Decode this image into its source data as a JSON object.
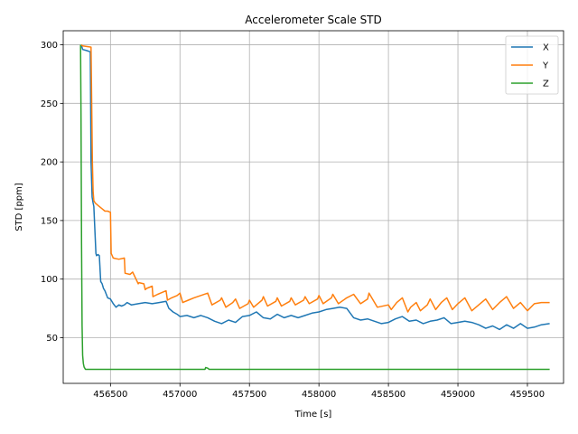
{
  "chart_data": {
    "type": "line",
    "title": "Accelerometer Scale STD",
    "xlabel": "Time [s]",
    "ylabel": "STD [ppm]",
    "xlim": [
      456160,
      459760
    ],
    "ylim": [
      11,
      312
    ],
    "xticks": [
      456500,
      457000,
      457500,
      458000,
      458500,
      459000,
      459500
    ],
    "yticks": [
      50,
      100,
      150,
      200,
      250,
      300
    ],
    "grid": true,
    "legend_position": "top-right",
    "series": [
      {
        "name": "X",
        "color": "#1f77b4",
        "x": [
          456290,
          456300,
          456330,
          456355,
          456360,
          456368,
          456375,
          456380,
          456395,
          456400,
          456410,
          456420,
          456430,
          456440,
          456450,
          456460,
          456480,
          456500,
          456520,
          456540,
          456560,
          456580,
          456600,
          456620,
          456650,
          456700,
          456750,
          456800,
          456850,
          456900,
          456920,
          456950,
          456980,
          457000,
          457050,
          457100,
          457150,
          457200,
          457250,
          457300,
          457350,
          457400,
          457450,
          457500,
          457550,
          457600,
          457650,
          457700,
          457750,
          457800,
          457850,
          457900,
          457950,
          458000,
          458050,
          458100,
          458150,
          458200,
          458250,
          458300,
          458350,
          458400,
          458450,
          458500,
          458550,
          458600,
          458650,
          458700,
          458750,
          458800,
          458850,
          458900,
          458950,
          459000,
          459050,
          459100,
          459150,
          459200,
          459250,
          459300,
          459350,
          459400,
          459450,
          459500,
          459550,
          459600,
          459660
        ],
        "y": [
          300,
          296,
          295,
          294,
          200,
          170,
          165,
          162,
          122,
          120,
          121,
          120,
          98,
          96,
          92,
          90,
          84,
          83,
          79,
          76,
          78,
          77,
          78,
          80,
          78,
          79,
          80,
          79,
          80,
          81,
          75,
          72,
          70,
          68,
          69,
          67,
          69,
          67,
          64,
          62,
          65,
          63,
          68,
          69,
          72,
          67,
          66,
          70,
          67,
          69,
          67,
          69,
          71,
          72,
          74,
          75,
          76,
          75,
          67,
          65,
          66,
          64,
          62,
          63,
          66,
          68,
          64,
          65,
          62,
          64,
          65,
          67,
          62,
          63,
          64,
          63,
          61,
          58,
          60,
          57,
          61,
          58,
          62,
          58,
          59,
          61,
          62
        ]
      },
      {
        "name": "Y",
        "color": "#ff7f0e",
        "x": [
          456290,
          456300,
          456360,
          456370,
          456375,
          456380,
          456390,
          456400,
          456420,
          456440,
          456460,
          456480,
          456500,
          456505,
          456520,
          456560,
          456600,
          456605,
          456640,
          456660,
          456700,
          456705,
          456740,
          456750,
          456760,
          456800,
          456805,
          456840,
          456860,
          456900,
          456910,
          456940,
          456980,
          457000,
          457020,
          457060,
          457100,
          457150,
          457200,
          457230,
          457290,
          457300,
          457330,
          457380,
          457400,
          457430,
          457490,
          457500,
          457530,
          457590,
          457600,
          457630,
          457690,
          457700,
          457730,
          457790,
          457800,
          457830,
          457890,
          457900,
          457930,
          457990,
          458000,
          458030,
          458090,
          458100,
          458140,
          458200,
          458250,
          458300,
          458350,
          458360,
          458420,
          458500,
          458520,
          458560,
          458600,
          458640,
          458660,
          458700,
          458730,
          458780,
          458800,
          458840,
          458880,
          458920,
          458960,
          459000,
          459050,
          459100,
          459150,
          459200,
          459250,
          459300,
          459350,
          459400,
          459450,
          459500,
          459550,
          459600,
          459660
        ],
        "y": [
          300,
          299,
          298,
          200,
          175,
          167,
          165,
          164,
          162,
          160,
          158,
          158,
          157,
          122,
          118,
          117,
          118,
          105,
          104,
          106,
          96,
          97,
          96,
          91,
          92,
          94,
          85,
          87,
          88,
          90,
          82,
          84,
          86,
          88,
          80,
          82,
          84,
          86,
          88,
          78,
          82,
          84,
          76,
          80,
          83,
          75,
          79,
          82,
          76,
          82,
          85,
          77,
          81,
          84,
          77,
          81,
          84,
          78,
          82,
          85,
          79,
          83,
          86,
          79,
          84,
          87,
          79,
          84,
          87,
          79,
          83,
          88,
          76,
          78,
          74,
          80,
          84,
          72,
          76,
          80,
          73,
          78,
          83,
          74,
          80,
          84,
          74,
          79,
          84,
          73,
          78,
          83,
          74,
          80,
          85,
          75,
          80,
          73,
          79,
          80,
          80
        ]
      },
      {
        "name": "Z",
        "color": "#2ca02c",
        "x": [
          456285,
          456288,
          456292,
          456296,
          456300,
          456305,
          456310,
          456320,
          456340,
          456400,
          456600,
          456900,
          457100,
          457180,
          457185,
          457200,
          457210,
          457500,
          458000,
          458500,
          459000,
          459500,
          459660
        ],
        "y": [
          300,
          240,
          130,
          60,
          35,
          28,
          25,
          23,
          23,
          23,
          23,
          23,
          23,
          23,
          24.5,
          24,
          23,
          23,
          23,
          23,
          23,
          23,
          23
        ]
      }
    ]
  }
}
